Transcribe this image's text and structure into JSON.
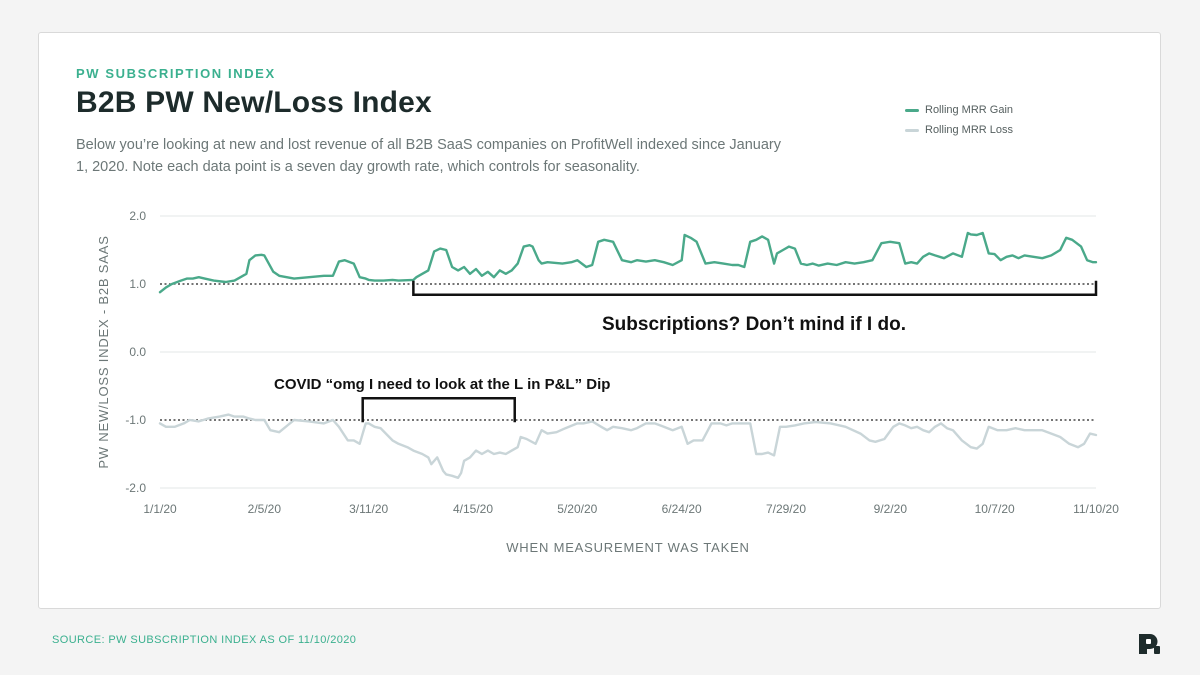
{
  "header": {
    "eyebrow": "PW SUBSCRIPTION INDEX",
    "title": "B2B PW New/Loss Index",
    "description": "Below you’re looking at new and lost revenue of all B2B SaaS companies on ProfitWell indexed since January 1, 2020. Note each data point is a seven day growth rate, which controls for seasonality."
  },
  "footer": {
    "source": "SOURCE: PW SUBSCRIPTION INDEX AS OF 11/10/2020"
  },
  "colors": {
    "gain": "#4aa98a",
    "loss": "#c9d5d8",
    "accent": "#3bb08f",
    "title": "#1d2b2b"
  },
  "chart_data": {
    "type": "line",
    "xlabel": "WHEN MEASUREMENT WAS TAKEN",
    "ylabel": "PW NEW/LOSS INDEX - B2B SAAS",
    "ylim": [
      -2.0,
      2.0
    ],
    "yticks": [
      2.0,
      1.0,
      0.0,
      -1.0,
      -2.0
    ],
    "ytick_labels": [
      "2.0",
      "1.0",
      "0.0",
      "-1.0",
      "-2.0"
    ],
    "xlim": [
      0,
      314
    ],
    "xticks": [
      0,
      35,
      70,
      105,
      140,
      175,
      210,
      245,
      280,
      314
    ],
    "xtick_labels": [
      "1/1/20",
      "2/5/20",
      "3/11/20",
      "4/15/20",
      "5/20/20",
      "6/24/20",
      "7/29/20",
      "9/2/20",
      "10/7/20",
      "11/10/20"
    ],
    "grid": true,
    "reference_lines": [
      1.0,
      -1.0
    ],
    "legend": {
      "placement": "top-right",
      "entries": [
        "Rolling MRR Gain",
        "Rolling MRR Loss"
      ]
    },
    "annotations": [
      {
        "text": "Subscriptions? Don’t mind if I do.",
        "x_start": 85,
        "x_end": 314,
        "y": 0.9
      },
      {
        "text": "COVID “omg I need to look at the L in P&L” Dip",
        "x_start": 68,
        "x_end": 119,
        "y": -0.68
      }
    ],
    "series": [
      {
        "name": "Rolling MRR Gain",
        "x": [
          0,
          2,
          4,
          7,
          9,
          11,
          13,
          15,
          18,
          22,
          25,
          27,
          29,
          30,
          32,
          34,
          35,
          38,
          40,
          45,
          50,
          55,
          58,
          60,
          62,
          65,
          67,
          69,
          70,
          72,
          75,
          78,
          80,
          85,
          86,
          88,
          90,
          92,
          94,
          96,
          98,
          100,
          102,
          104,
          106,
          108,
          110,
          112,
          114,
          116,
          118,
          120,
          122,
          124,
          125,
          127,
          128,
          130,
          135,
          138,
          140,
          143,
          145,
          147,
          149,
          152,
          155,
          158,
          160,
          163,
          166,
          169,
          172,
          175,
          176,
          178,
          180,
          183,
          186,
          189,
          192,
          194,
          196,
          198,
          200,
          202,
          204,
          206,
          207,
          209,
          211,
          213,
          215,
          217,
          219,
          221,
          224,
          227,
          230,
          233,
          236,
          239,
          242,
          245,
          248,
          250,
          252,
          254,
          256,
          258,
          260,
          263,
          266,
          269,
          271,
          272,
          274,
          276,
          278,
          280,
          282,
          284,
          286,
          288,
          290,
          293,
          296,
          299,
          302,
          304,
          306,
          309,
          311,
          313,
          314
        ],
        "values": [
          0.88,
          0.95,
          1.0,
          1.05,
          1.08,
          1.08,
          1.1,
          1.08,
          1.05,
          1.03,
          1.05,
          1.1,
          1.15,
          1.35,
          1.42,
          1.43,
          1.42,
          1.18,
          1.12,
          1.08,
          1.1,
          1.12,
          1.12,
          1.33,
          1.35,
          1.3,
          1.1,
          1.08,
          1.06,
          1.05,
          1.05,
          1.06,
          1.05,
          1.06,
          1.1,
          1.15,
          1.2,
          1.48,
          1.52,
          1.5,
          1.25,
          1.2,
          1.25,
          1.15,
          1.22,
          1.12,
          1.18,
          1.1,
          1.2,
          1.15,
          1.2,
          1.3,
          1.55,
          1.57,
          1.55,
          1.35,
          1.3,
          1.32,
          1.3,
          1.32,
          1.35,
          1.25,
          1.28,
          1.62,
          1.65,
          1.62,
          1.35,
          1.32,
          1.35,
          1.33,
          1.35,
          1.32,
          1.28,
          1.35,
          1.72,
          1.68,
          1.62,
          1.3,
          1.32,
          1.3,
          1.28,
          1.28,
          1.25,
          1.62,
          1.65,
          1.7,
          1.65,
          1.3,
          1.45,
          1.5,
          1.55,
          1.52,
          1.3,
          1.28,
          1.3,
          1.27,
          1.3,
          1.28,
          1.32,
          1.3,
          1.32,
          1.35,
          1.6,
          1.62,
          1.6,
          1.3,
          1.32,
          1.3,
          1.4,
          1.45,
          1.42,
          1.38,
          1.45,
          1.4,
          1.75,
          1.73,
          1.72,
          1.75,
          1.45,
          1.44,
          1.35,
          1.4,
          1.42,
          1.38,
          1.42,
          1.4,
          1.38,
          1.42,
          1.5,
          1.68,
          1.65,
          1.55,
          1.35,
          1.32,
          1.32
        ]
      },
      {
        "name": "Rolling MRR Loss",
        "x": [
          0,
          2,
          5,
          8,
          10,
          13,
          16,
          20,
          23,
          25,
          28,
          30,
          32,
          35,
          37,
          40,
          45,
          50,
          55,
          58,
          60,
          63,
          65,
          67,
          69,
          70,
          72,
          74,
          78,
          80,
          83,
          85,
          88,
          90,
          91,
          93,
          95,
          96,
          98,
          100,
          101,
          102,
          104,
          106,
          108,
          110,
          112,
          114,
          116,
          118,
          120,
          121,
          123,
          126,
          128,
          130,
          133,
          136,
          140,
          142,
          145,
          148,
          150,
          152,
          155,
          158,
          160,
          163,
          166,
          169,
          172,
          175,
          177,
          179,
          182,
          185,
          188,
          190,
          192,
          195,
          198,
          200,
          202,
          204,
          206,
          208,
          210,
          213,
          216,
          220,
          225,
          230,
          235,
          238,
          240,
          243,
          246,
          248,
          250,
          252,
          254,
          256,
          258,
          260,
          262,
          264,
          266,
          269,
          272,
          274,
          276,
          278,
          281,
          284,
          287,
          290,
          293,
          296,
          299,
          302,
          305,
          308,
          310,
          312,
          314
        ],
        "values": [
          -1.05,
          -1.1,
          -1.1,
          -1.05,
          -1.0,
          -1.02,
          -0.98,
          -0.95,
          -0.92,
          -0.95,
          -0.95,
          -0.98,
          -1.0,
          -1.0,
          -1.15,
          -1.18,
          -1.0,
          -1.02,
          -1.05,
          -1.0,
          -1.1,
          -1.3,
          -1.3,
          -1.35,
          -1.05,
          -1.05,
          -1.1,
          -1.12,
          -1.3,
          -1.35,
          -1.4,
          -1.45,
          -1.5,
          -1.55,
          -1.65,
          -1.55,
          -1.75,
          -1.8,
          -1.82,
          -1.85,
          -1.78,
          -1.6,
          -1.55,
          -1.45,
          -1.5,
          -1.45,
          -1.5,
          -1.48,
          -1.5,
          -1.45,
          -1.4,
          -1.25,
          -1.28,
          -1.35,
          -1.15,
          -1.2,
          -1.18,
          -1.12,
          -1.05,
          -1.05,
          -1.02,
          -1.1,
          -1.15,
          -1.1,
          -1.12,
          -1.15,
          -1.12,
          -1.05,
          -1.05,
          -1.1,
          -1.15,
          -1.1,
          -1.35,
          -1.3,
          -1.3,
          -1.05,
          -1.05,
          -1.08,
          -1.05,
          -1.05,
          -1.05,
          -1.5,
          -1.5,
          -1.48,
          -1.52,
          -1.1,
          -1.1,
          -1.08,
          -1.05,
          -1.03,
          -1.05,
          -1.1,
          -1.2,
          -1.3,
          -1.32,
          -1.28,
          -1.1,
          -1.05,
          -1.08,
          -1.12,
          -1.1,
          -1.15,
          -1.18,
          -1.1,
          -1.05,
          -1.12,
          -1.15,
          -1.3,
          -1.4,
          -1.42,
          -1.35,
          -1.1,
          -1.15,
          -1.15,
          -1.12,
          -1.15,
          -1.15,
          -1.15,
          -1.2,
          -1.25,
          -1.35,
          -1.4,
          -1.35,
          -1.2,
          -1.22
        ]
      }
    ]
  }
}
